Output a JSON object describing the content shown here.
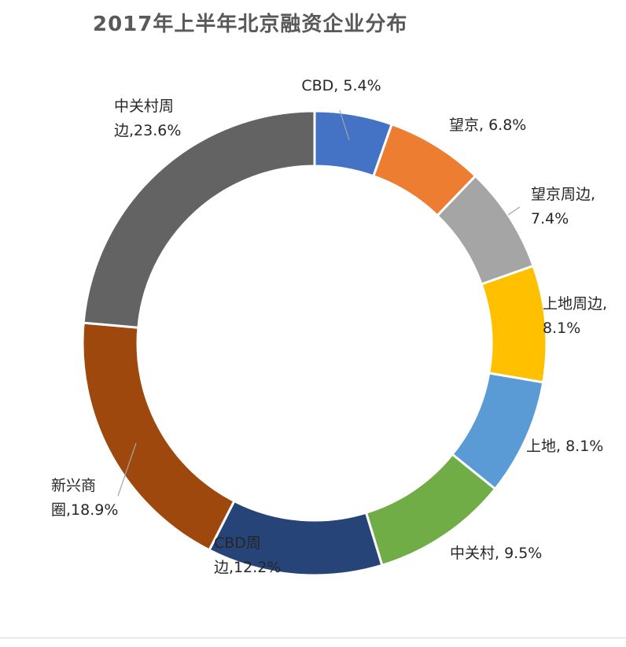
{
  "chart_data": {
    "type": "pie",
    "title": "2017年上半年北京融资企业分布",
    "slices": [
      {
        "label": "CBD",
        "value": 5.4,
        "color": "#4472C4",
        "label_lines": [
          "CBD, 5.4%"
        ]
      },
      {
        "label": "望京",
        "value": 6.8,
        "color": "#ED7D31",
        "label_lines": [
          "望京, 6.8%"
        ]
      },
      {
        "label": "望京周边",
        "value": 7.4,
        "color": "#A5A5A5",
        "label_lines": [
          "望京周边,",
          "7.4%"
        ]
      },
      {
        "label": "上地周边",
        "value": 8.1,
        "color": "#FFC000",
        "label_lines": [
          "上地周边,",
          "8.1%"
        ]
      },
      {
        "label": "上地",
        "value": 8.1,
        "color": "#5B9BD5",
        "label_lines": [
          "上地, 8.1%"
        ]
      },
      {
        "label": "中关村",
        "value": 9.5,
        "color": "#70AD47",
        "label_lines": [
          "中关村, 9.5%"
        ]
      },
      {
        "label": "CBD周边",
        "value": 12.2,
        "color": "#264478",
        "label_lines": [
          "CBD周",
          "边,12.2%"
        ]
      },
      {
        "label": "新兴商圈",
        "value": 18.9,
        "color": "#9E480E",
        "label_lines": [
          "新兴商",
          "圈,18.9%"
        ]
      },
      {
        "label": "中关村周边",
        "value": 23.6,
        "color": "#636363",
        "label_lines": [
          "中关村周",
          "边,23.6%"
        ]
      }
    ],
    "legend": "none",
    "grid": false
  }
}
